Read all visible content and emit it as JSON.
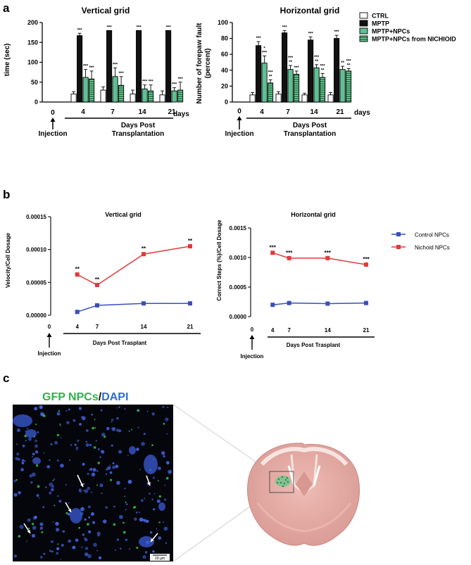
{
  "panels": {
    "a": "a",
    "b": "b",
    "c": "c"
  },
  "chart_data": [
    {
      "type": "bar",
      "title": "Vertical grid",
      "ylabel": "time (sec)",
      "xlabel": "Days Post Transplantation",
      "x_unit": "days",
      "ylim": [
        0,
        200
      ],
      "yticks": [
        "0",
        "50",
        "100",
        "150",
        "200"
      ],
      "zero_label": "0",
      "injection_label": "Injection",
      "categories": [
        "4",
        "7",
        "14",
        "21"
      ],
      "series": [
        {
          "name": "CTRL",
          "values": [
            20,
            30,
            20,
            18
          ],
          "errors": [
            6,
            8,
            10,
            10
          ],
          "stars": [
            "",
            "",
            "",
            ""
          ]
        },
        {
          "name": "MPTP",
          "values": [
            167,
            180,
            180,
            180
          ],
          "errors": [
            6,
            0,
            0,
            0
          ],
          "stars": [
            "***",
            "***",
            "***",
            "***"
          ]
        },
        {
          "name": "MPTP+NPCs",
          "values": [
            62,
            64,
            33,
            28
          ],
          "errors": [
            20,
            22,
            10,
            8
          ],
          "stars": [
            "***",
            "***",
            "***",
            "***"
          ]
        },
        {
          "name": "MPTP+NPCs from NICHIOID",
          "values": [
            58,
            42,
            28,
            30
          ],
          "errors": [
            20,
            22,
            15,
            20
          ],
          "stars": [
            "***",
            "***",
            "***",
            "***"
          ]
        }
      ]
    },
    {
      "type": "bar",
      "title": "Horizontal grid",
      "ylabel": "Number of forepaw fault (percent)",
      "xlabel": "Days Post Transplantation",
      "x_unit": "days",
      "ylim": [
        0,
        100
      ],
      "yticks": [
        "0",
        "20",
        "40",
        "60",
        "80",
        "100"
      ],
      "zero_label": "0",
      "injection_label": "Injection",
      "categories": [
        "4",
        "7",
        "14",
        "21"
      ],
      "series": [
        {
          "name": "CTRL",
          "values": [
            9,
            10,
            9,
            9
          ],
          "errors": [
            3,
            3,
            2,
            3
          ],
          "stars": [
            "",
            "",
            "",
            ""
          ]
        },
        {
          "name": "MPTP",
          "values": [
            71,
            87,
            78,
            80
          ],
          "errors": [
            5,
            3,
            4,
            4
          ],
          "stars": [
            "***",
            "***",
            "***",
            "***"
          ]
        },
        {
          "name": "MPTP+NPCs",
          "values": [
            49,
            41,
            43,
            41
          ],
          "errors": [
            9,
            5,
            4,
            4
          ],
          "stars": [
            "*\n***",
            "***\n**",
            "***\n**",
            "**"
          ]
        },
        {
          "name": "MPTP+NPCs from NICHIOID",
          "values": [
            24,
            35,
            31,
            39
          ],
          "errors": [
            4,
            4,
            5,
            3
          ],
          "stars": [
            "***\n**",
            "***",
            "***\n**",
            "***\n**"
          ]
        }
      ]
    },
    {
      "type": "line",
      "title": "Vertical grid",
      "ylabel": "Velocity/Cell Dosage",
      "xlabel": "Days Post Trasplant",
      "ylim": [
        0,
        0.00015
      ],
      "yticks": [
        "0.00000",
        "0.00005",
        "0.00010",
        "0.00015"
      ],
      "xlim": [
        0,
        21
      ],
      "x": [
        4,
        7,
        14,
        21
      ],
      "zero_label": "0",
      "injection_label": "Injection",
      "series": [
        {
          "name": "Control NPCs",
          "color": "#3a4fb8",
          "values": [
            5e-06,
            1.5e-05,
            1.8e-05,
            1.8e-05
          ],
          "stars": [
            "",
            "",
            "",
            ""
          ]
        },
        {
          "name": "Nichoid NPCs",
          "color": "#e03a3a",
          "values": [
            6.2e-05,
            4.6e-05,
            9.3e-05,
            0.000105
          ],
          "stars": [
            "**",
            "**",
            "**",
            "**"
          ]
        }
      ]
    },
    {
      "type": "line",
      "title": "Horizontal grid",
      "ylabel": "Correct Steps (%)/Cell Dosage",
      "xlabel": "Days Post Trasplant",
      "ylim": [
        0,
        0.0015
      ],
      "yticks": [
        "0.0000",
        "0.0005",
        "0.0010",
        "0.0015"
      ],
      "xlim": [
        0,
        21
      ],
      "x": [
        4,
        7,
        14,
        21
      ],
      "zero_label": "0",
      "injection_label": "Injection",
      "series": [
        {
          "name": "Control NPCs",
          "color": "#3a4fb8",
          "values": [
            0.0002,
            0.00023,
            0.00022,
            0.00023
          ],
          "stars": [
            "",
            "",
            "",
            ""
          ]
        },
        {
          "name": "Nichoid NPCs",
          "color": "#e03a3a",
          "values": [
            0.00108,
            0.00099,
            0.00099,
            0.00088
          ],
          "stars": [
            "***",
            "***",
            "***",
            "***"
          ]
        }
      ]
    }
  ],
  "micrograph": {
    "title_gfp": "GFP NPCs",
    "title_sep": "/",
    "title_dapi": "DAPI",
    "scale_bar": "10 µm",
    "gfp_color": "#2fb14a",
    "dapi_color": "#2a6fcf"
  },
  "colors": {
    "ctrl_fill": "#ffffff",
    "mptp_fill": "#111111",
    "npcs_fill": "#5fbf95",
    "nichioid_fill": "#3f9a6a"
  }
}
